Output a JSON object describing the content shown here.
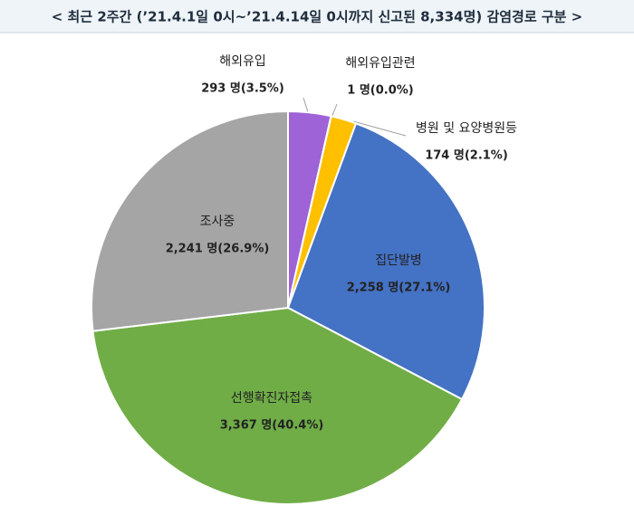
{
  "chart_data": {
    "type": "pie",
    "title": "< 최근 2주간 (’21.4.1일 0시~’21.4.14일 0시까지 신고된 8,334명) 감염경로 구분 >",
    "categories": [
      "해외유입",
      "해외유입관련",
      "병원 및 요양병원등",
      "집단발병",
      "선행확진자접촉",
      "조사중"
    ],
    "values": [
      293,
      1,
      174,
      2258,
      3367,
      2241
    ],
    "value_labels": [
      "293 명(3.5%)",
      "1 명(0.0%)",
      "174 명(2.1%)",
      "2,258 명(27.1%)",
      "3,367 명(40.4%)",
      "2,241 명(26.9%)"
    ],
    "colors": [
      "#9e63d6",
      "#5b9bd5",
      "#ffc000",
      "#4472c4",
      "#70ad47",
      "#a5a5a5"
    ]
  }
}
